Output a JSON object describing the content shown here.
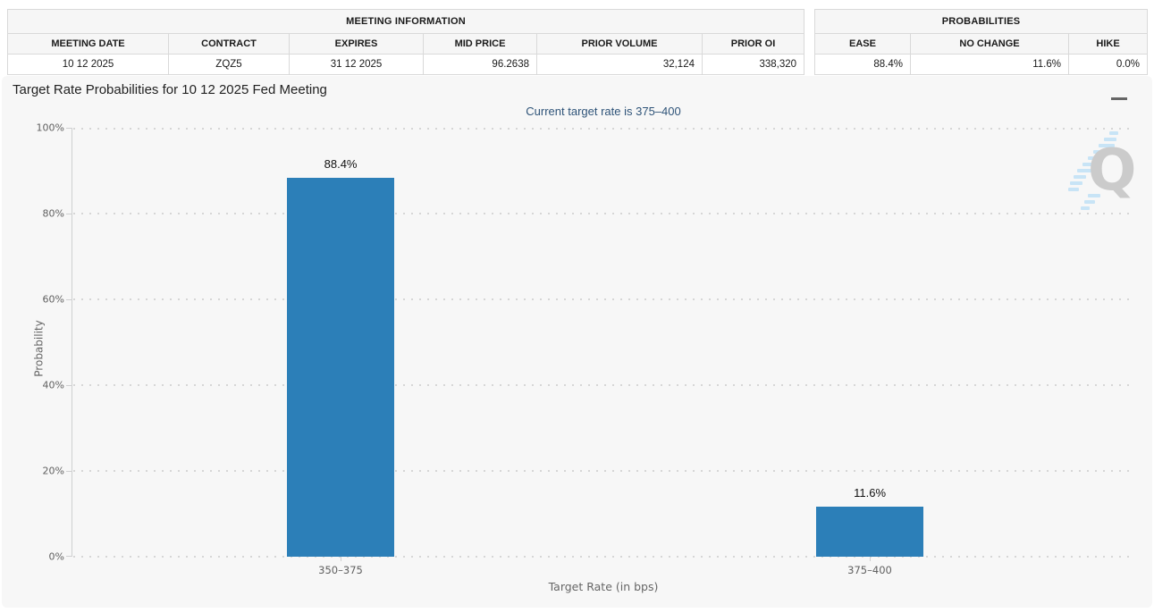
{
  "meeting_information": {
    "title": "MEETING INFORMATION",
    "columns": [
      "MEETING DATE",
      "CONTRACT",
      "EXPIRES",
      "MID PRICE",
      "PRIOR VOLUME",
      "PRIOR OI"
    ],
    "values": [
      "10 12 2025",
      "ZQZ5",
      "31 12 2025",
      "96.2638",
      "32,124",
      "338,320"
    ]
  },
  "probabilities": {
    "title": "PROBABILITIES",
    "columns": [
      "EASE",
      "NO CHANGE",
      "HIKE"
    ],
    "values": [
      "88.4%",
      "11.6%",
      "0.0%"
    ]
  },
  "chart": {
    "title": "Target Rate Probabilities for 10 12 2025 Fed Meeting",
    "subtitle": "Current target rate is 375–400",
    "watermark_letter": "Q"
  },
  "chart_data": {
    "type": "bar",
    "title": "Target Rate Probabilities for 10 12 2025 Fed Meeting",
    "subtitle": "Current target rate is 375–400",
    "categories": [
      "350–375",
      "375–400"
    ],
    "values": [
      88.4,
      11.6
    ],
    "value_labels": [
      "88.4%",
      "11.6%"
    ],
    "xlabel": "Target Rate (in bps)",
    "ylabel": "Probability",
    "ylim": [
      0,
      100
    ],
    "yticks": [
      "0%",
      "20%",
      "40%",
      "60%",
      "80%",
      "100%"
    ],
    "grid": "horizontal-dotted",
    "legend": "none",
    "bar_color": "#2c7fb8"
  },
  "colors": {
    "bar": "#2c7fb8",
    "panel_background": "#f7f7f7",
    "subtitle_text": "#2e5378",
    "axis_text": "#606060",
    "table_border": "#d9d9d9",
    "table_header_background": "#f6f6f6"
  }
}
